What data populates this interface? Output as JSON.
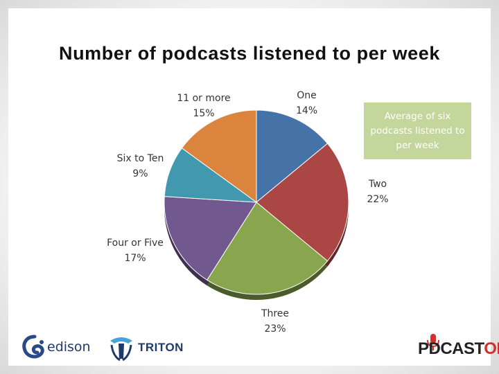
{
  "slide": {
    "title": "Number of podcasts listened to per week"
  },
  "chart_data": {
    "type": "pie",
    "title": "Number of podcasts listened to per week",
    "slices": [
      {
        "label": "One",
        "value": 14,
        "percent_label": "14%",
        "color": "#4572a7"
      },
      {
        "label": "Two",
        "value": 22,
        "percent_label": "22%",
        "color": "#aa4643"
      },
      {
        "label": "Three",
        "value": 23,
        "percent_label": "23%",
        "color": "#89a54e"
      },
      {
        "label": "Four or Five",
        "value": 17,
        "percent_label": "17%",
        "color": "#71588f"
      },
      {
        "label": "Six to Ten",
        "value": 9,
        "percent_label": "9%",
        "color": "#4198af"
      },
      {
        "label": "11 or more",
        "value": 15,
        "percent_label": "15%",
        "color": "#db843d"
      }
    ],
    "start_angle": "12 o'clock",
    "direction": "clockwise"
  },
  "callout": {
    "text": "Average of six podcasts listened to per week",
    "color": "#c3d69b"
  },
  "logos": {
    "edison": "edison",
    "triton": "TRITON",
    "podcastone": {
      "part1": "P",
      "part2": "DCAST",
      "part3": "ONE"
    }
  }
}
